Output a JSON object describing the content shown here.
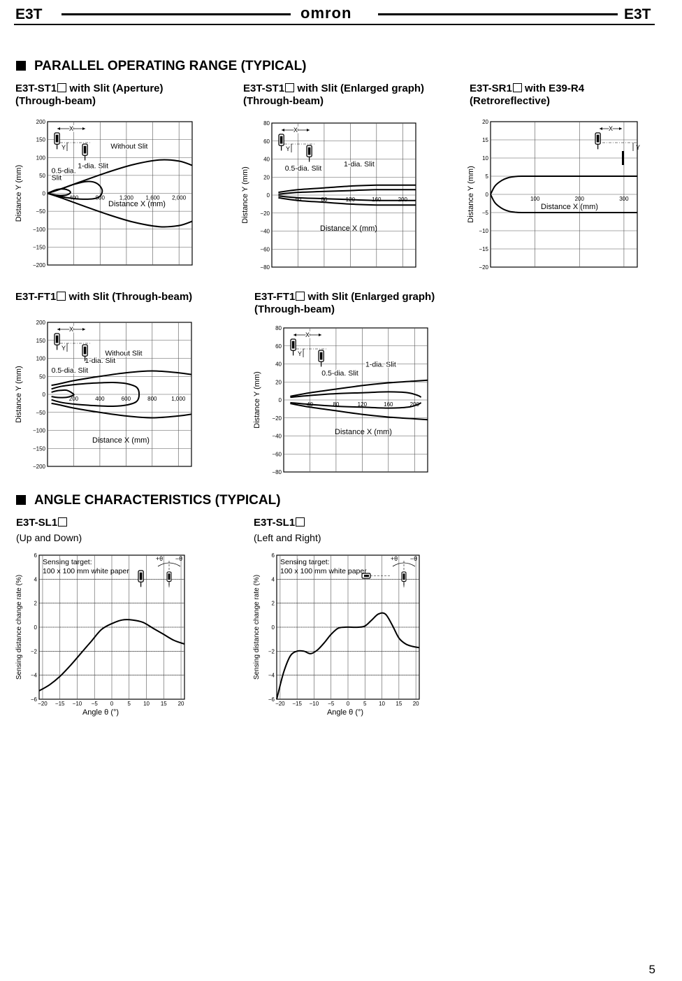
{
  "header": {
    "model_left": "E3T",
    "model_right": "E3T",
    "brand": "omron"
  },
  "sections": {
    "parallel": "PARALLEL OPERATING RANGE (TYPICAL)",
    "angle": "ANGLE CHARACTERISTICS (TYPICAL)"
  },
  "captions": {
    "c1_model": "E3T-ST1",
    "c1_rest": " with Slit (Aperture)",
    "c1_line2": "(Through-beam)",
    "c2_model": "E3T-ST1",
    "c2_rest": " with Slit (Enlarged graph)",
    "c2_line2": "(Through-beam)",
    "c3_model": "E3T-SR1",
    "c3_rest": " with E39-R4",
    "c3_line2": "(Retroreflective)",
    "c4_model": "E3T-FT1",
    "c4_rest": " with Slit (Through-beam)",
    "c5_model": "E3T-FT1",
    "c5_rest": " with Slit (Enlarged graph)",
    "c5_line2": "(Through-beam)",
    "c6_model": "E3T-SL1",
    "c6_line2": "(Up and Down)",
    "c7_model": "E3T-SL1",
    "c7_line2": "(Left and Right)"
  },
  "page_number": "5",
  "chart_data": [
    {
      "id": "st1_aperture",
      "type": "line",
      "xlabel": "Distance X (mm)",
      "ylabel": "Distance Y (mm)",
      "xlim": [
        0,
        2200
      ],
      "ylim": [
        -200,
        200
      ],
      "xticks": [
        400,
        800,
        1200,
        1600,
        2000
      ],
      "xtick_labels": [
        "400",
        "800",
        "1,200",
        "1,600",
        "2,000"
      ],
      "yticks": [
        200,
        150,
        100,
        50,
        0,
        -50,
        -100,
        -150,
        -200
      ],
      "ytick_labels": [
        "200",
        "150",
        "100",
        "50",
        "0",
        "−50",
        "−100",
        "−150",
        "−200"
      ],
      "annotations": [
        "Without Slit",
        "1-dia. Slit",
        "0.5-dia.",
        "Slit",
        "X",
        "Y"
      ],
      "series": [
        {
          "name": "Without Slit",
          "closed": false,
          "x": [
            0,
            200,
            500,
            900,
            1300,
            1700,
            2000,
            2200
          ],
          "y": [
            0,
            12,
            32,
            58,
            80,
            93,
            90,
            78
          ]
        },
        {
          "name": "Without Slit",
          "closed": false,
          "x": [
            0,
            200,
            500,
            900,
            1300,
            1700,
            2000,
            2200
          ],
          "y": [
            0,
            -12,
            -32,
            -58,
            -80,
            -93,
            -90,
            -78
          ]
        },
        {
          "name": "1-dia. Slit",
          "closed": false,
          "x": [
            0,
            200,
            400,
            600,
            750,
            830,
            800,
            700,
            500,
            300,
            100,
            0
          ],
          "y": [
            0,
            12,
            25,
            33,
            28,
            10,
            -8,
            -15,
            -16,
            -12,
            -5,
            0
          ]
        },
        {
          "name": "0.5-dia. Slit",
          "closed": false,
          "x": [
            0,
            100,
            200,
            300,
            350,
            300,
            200,
            100,
            0
          ],
          "y": [
            0,
            8,
            12,
            10,
            3,
            -4,
            -6,
            -4,
            0
          ]
        }
      ]
    },
    {
      "id": "st1_enlarged",
      "type": "line",
      "xlabel": "Distance X (mm)",
      "ylabel": "Distance Y (mm)",
      "xlim": [
        0,
        220
      ],
      "ylim": [
        -80,
        80
      ],
      "xticks": [
        40,
        80,
        120,
        160,
        200
      ],
      "xtick_labels": [
        "40",
        "80",
        "120",
        "160",
        "200"
      ],
      "yticks": [
        80,
        60,
        40,
        20,
        0,
        -20,
        -40,
        -60,
        -80
      ],
      "ytick_labels": [
        "80",
        "60",
        "40",
        "20",
        "0",
        "−20",
        "−40",
        "−60",
        "−80"
      ],
      "annotations": [
        "1-dia. Slit",
        "0.5-dia. Slit",
        "X",
        "Y"
      ],
      "series": [
        {
          "name": "1-dia. Slit",
          "closed": false,
          "x": [
            10,
            40,
            80,
            120,
            160,
            200,
            220
          ],
          "y": [
            3,
            6,
            8,
            10,
            11,
            11,
            11
          ]
        },
        {
          "name": "1-dia. Slit",
          "closed": false,
          "x": [
            10,
            40,
            80,
            120,
            160,
            200,
            220
          ],
          "y": [
            -3,
            -6,
            -8,
            -10,
            -11,
            -11,
            -11
          ]
        },
        {
          "name": "0.5-dia. Slit",
          "closed": false,
          "x": [
            10,
            40,
            80,
            120,
            160,
            200,
            220
          ],
          "y": [
            1,
            3,
            4,
            5,
            6,
            6,
            6
          ]
        },
        {
          "name": "0.5-dia. Slit",
          "closed": false,
          "x": [
            10,
            40,
            80,
            120,
            160,
            200,
            220
          ],
          "y": [
            -1,
            -3,
            -4,
            -5,
            -6,
            -6,
            -6
          ]
        }
      ]
    },
    {
      "id": "sr1_retro",
      "type": "line",
      "xlabel": "Distance X (mm)",
      "ylabel": "Distance Y (mm)",
      "xlim": [
        0,
        330
      ],
      "ylim": [
        -20,
        20
      ],
      "xticks": [
        100,
        200,
        300
      ],
      "xtick_labels": [
        "100",
        "200",
        "300"
      ],
      "yticks": [
        20,
        15,
        10,
        5,
        0,
        -5,
        -10,
        -15,
        -20
      ],
      "ytick_labels": [
        "20",
        "15",
        "10",
        "5",
        "0",
        "−5",
        "−10",
        "−15",
        "−20"
      ],
      "annotations": [
        "X",
        "Y"
      ],
      "series": [
        {
          "name": "",
          "closed": false,
          "x": [
            0,
            10,
            25,
            40,
            55,
            70,
            100,
            200,
            330
          ],
          "y": [
            0,
            2.3,
            3.8,
            4.6,
            4.9,
            5,
            5,
            5,
            5
          ]
        },
        {
          "name": "",
          "closed": false,
          "x": [
            0,
            10,
            25,
            40,
            55,
            70,
            100,
            200,
            330
          ],
          "y": [
            0,
            -2.3,
            -3.8,
            -4.6,
            -4.9,
            -5,
            -5,
            -5,
            -5
          ]
        }
      ]
    },
    {
      "id": "ft1_slit",
      "type": "line",
      "xlabel": "Distance X (mm)",
      "ylabel": "Distance Y (mm)",
      "xlim": [
        0,
        1100
      ],
      "ylim": [
        -200,
        200
      ],
      "xticks": [
        200,
        400,
        600,
        800,
        1000
      ],
      "xtick_labels": [
        "200",
        "400",
        "600",
        "800",
        "1,000"
      ],
      "yticks": [
        200,
        150,
        100,
        50,
        0,
        -50,
        -100,
        -150,
        -200
      ],
      "ytick_labels": [
        "200",
        "150",
        "100",
        "50",
        "0",
        "−50",
        "−100",
        "−150",
        "−200"
      ],
      "annotations": [
        "Without Slit",
        "1-dia. Slit",
        "0.5-dia. Slit",
        "X",
        "Y"
      ],
      "series": [
        {
          "name": "Without Slit",
          "closed": false,
          "x": [
            30,
            100,
            200,
            400,
            600,
            800,
            1000,
            1100
          ],
          "y": [
            25,
            30,
            38,
            50,
            60,
            65,
            60,
            55
          ]
        },
        {
          "name": "Without Slit",
          "closed": false,
          "x": [
            30,
            100,
            200,
            400,
            600,
            800,
            1000,
            1100
          ],
          "y": [
            -25,
            -30,
            -38,
            -50,
            -60,
            -65,
            -60,
            -55
          ]
        },
        {
          "name": "1-dia. Slit",
          "closed": false,
          "x": [
            30,
            100,
            200,
            300,
            400,
            500,
            600,
            680,
            700,
            680,
            600,
            500,
            400,
            300,
            200,
            100,
            30
          ],
          "y": [
            15,
            22,
            27,
            30,
            32,
            33,
            30,
            20,
            0,
            -20,
            -30,
            -33,
            -32,
            -30,
            -27,
            -22,
            -15
          ]
        },
        {
          "name": "0.5-dia. Slit",
          "closed": false,
          "x": [
            30,
            60,
            100,
            150,
            200,
            180,
            150,
            100,
            60,
            30
          ],
          "y": [
            6,
            9,
            11,
            11,
            0,
            -5,
            -8,
            -9,
            -8,
            -6
          ]
        }
      ]
    },
    {
      "id": "ft1_enlarged",
      "type": "line",
      "xlabel": "Distance X (mm)",
      "ylabel": "Distance Y (mm)",
      "xlim": [
        0,
        220
      ],
      "ylim": [
        -80,
        80
      ],
      "xticks": [
        40,
        80,
        120,
        160,
        200
      ],
      "xtick_labels": [
        "40",
        "80",
        "120",
        "160",
        "200"
      ],
      "yticks": [
        80,
        60,
        40,
        20,
        0,
        -20,
        -40,
        -60,
        -80
      ],
      "ytick_labels": [
        "80",
        "60",
        "40",
        "20",
        "0",
        "−20",
        "−40",
        "−60",
        "−80"
      ],
      "annotations": [
        "1-dia. Slit",
        "0.5-dia. Slit",
        "X",
        "Y"
      ],
      "series": [
        {
          "name": "1-dia. Slit",
          "closed": false,
          "x": [
            10,
            40,
            80,
            120,
            160,
            200,
            220
          ],
          "y": [
            4,
            8,
            12,
            16,
            19,
            21,
            22
          ]
        },
        {
          "name": "1-dia. Slit",
          "closed": false,
          "x": [
            10,
            40,
            80,
            120,
            160,
            200,
            220
          ],
          "y": [
            -4,
            -8,
            -12,
            -16,
            -19,
            -21,
            -22
          ]
        },
        {
          "name": "0.5-dia. Slit",
          "closed": false,
          "x": [
            10,
            40,
            80,
            120,
            160,
            190,
            205,
            210
          ],
          "y": [
            3,
            5,
            7,
            8,
            9,
            8,
            5,
            3
          ]
        },
        {
          "name": "0.5-dia. Slit",
          "closed": false,
          "x": [
            10,
            40,
            80,
            120,
            160,
            190,
            205,
            210
          ],
          "y": [
            -3,
            -5,
            -7,
            -8,
            -9,
            -8,
            -5,
            -3
          ]
        }
      ]
    },
    {
      "id": "sl1_updown",
      "type": "line",
      "xlabel": "Angle θ (°)",
      "ylabel": "Sensing distance change rate (%)",
      "xlim": [
        -21,
        21
      ],
      "ylim": [
        -6,
        6
      ],
      "xticks": [
        -20,
        -15,
        -10,
        -5,
        0,
        5,
        10,
        15,
        20
      ],
      "xtick_labels": [
        "−20",
        "−15",
        "−10",
        "−5",
        "0",
        "5",
        "10",
        "15",
        "20"
      ],
      "yticks": [
        6,
        4,
        2,
        0,
        -2,
        -4,
        -6
      ],
      "ytick_labels": [
        "6",
        "4",
        "2",
        "0",
        "−2",
        "−4",
        "−6"
      ],
      "annotations": [
        "Sensing target:",
        "100 x 100 mm white paper",
        "+θ",
        "−θ"
      ],
      "series": [
        {
          "name": "",
          "closed": false,
          "x": [
            -21,
            -18,
            -15,
            -12,
            -9,
            -6,
            -3,
            0,
            3,
            6,
            9,
            12,
            15,
            18,
            21
          ],
          "y": [
            -5.3,
            -4.8,
            -4.1,
            -3.2,
            -2.2,
            -1.2,
            -0.2,
            0.3,
            0.6,
            0.6,
            0.4,
            -0.1,
            -0.6,
            -1.1,
            -1.4
          ]
        }
      ]
    },
    {
      "id": "sl1_leftright",
      "type": "line",
      "xlabel": "Angle θ (°)",
      "ylabel": "Sensing distance change rate (%)",
      "xlim": [
        -21,
        21
      ],
      "ylim": [
        -6,
        6
      ],
      "xticks": [
        -20,
        -15,
        -10,
        -5,
        0,
        5,
        10,
        15,
        20
      ],
      "xtick_labels": [
        "−20",
        "−15",
        "−10",
        "−5",
        "0",
        "5",
        "10",
        "15",
        "20"
      ],
      "yticks": [
        6,
        4,
        2,
        0,
        -2,
        -4,
        -6
      ],
      "ytick_labels": [
        "6",
        "4",
        "2",
        "0",
        "−2",
        "−4",
        "−6"
      ],
      "annotations": [
        "Sensing target:",
        "100 x 100 mm white paper",
        "+θ",
        "−θ"
      ],
      "series": [
        {
          "name": "",
          "closed": false,
          "x": [
            -21,
            -19,
            -17,
            -15,
            -13,
            -11,
            -9,
            -7,
            -5,
            -3,
            -1,
            1,
            3,
            5,
            7,
            9,
            11,
            13,
            15,
            17,
            19,
            21
          ],
          "y": [
            -6,
            -3.8,
            -2.4,
            -2,
            -2,
            -2.2,
            -1.9,
            -1.3,
            -0.6,
            -0.1,
            0,
            0,
            0,
            0.1,
            0.6,
            1.1,
            1.1,
            0.2,
            -0.9,
            -1.4,
            -1.6,
            -1.7
          ]
        }
      ]
    }
  ]
}
